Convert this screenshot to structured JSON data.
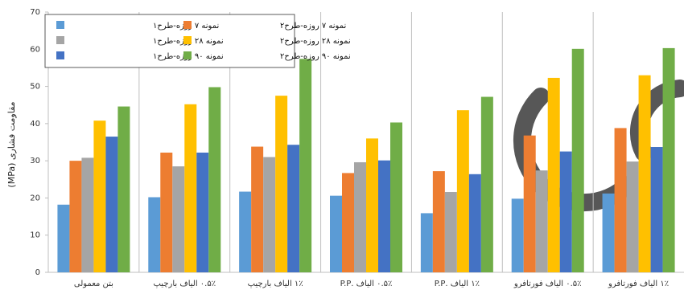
{
  "chart_data": {
    "type": "bar",
    "ylabel": "مقاومت فشاری (MPa)",
    "xlabel": "",
    "ylim": [
      0,
      70
    ],
    "yticks": [
      0,
      10,
      20,
      30,
      40,
      50,
      60,
      70
    ],
    "grid": "vertical separators between categories",
    "legend_position": "top-left",
    "categories": [
      "بتن معمولی",
      "۰.۵٪ الیاف بارچیپ",
      "۱٪ الیاف بارچیپ",
      "۰.۵٪ الیاف .P.P",
      "۱٪ الیاف .P.P",
      "۰.۵٪ الیاف فورتافرو",
      "۱٪ الیاف فورتافرو"
    ],
    "series": [
      {
        "name": "نمونه ۷ روزه-طرح۱",
        "color": "#5b9bd5",
        "values": [
          18.2,
          20.2,
          21.7,
          20.6,
          15.9,
          19.8,
          21.2
        ]
      },
      {
        "name": "نمونه ۷ روزه-طرح۲",
        "color": "#ed7d31",
        "values": [
          30.0,
          32.2,
          33.8,
          26.7,
          27.2,
          36.8,
          38.8
        ]
      },
      {
        "name": "نمونه ۲۸ روزه-طرح۱",
        "color": "#a5a5a5",
        "values": [
          30.8,
          28.5,
          31.0,
          29.6,
          21.6,
          27.4,
          29.8
        ]
      },
      {
        "name": "نمونه ۲۸ روزه-طرح۲",
        "color": "#ffc000",
        "values": [
          40.8,
          45.2,
          47.5,
          36.0,
          43.6,
          52.3,
          53.0
        ]
      },
      {
        "name": "نمونه ۹۰ روزه-طرح۱",
        "color": "#4472c4",
        "values": [
          36.5,
          32.2,
          34.3,
          30.1,
          26.4,
          32.5,
          33.7
        ]
      },
      {
        "name": "نمونه ۹۰ روزه-طرح۲",
        "color": "#70ad47",
        "values": [
          44.6,
          49.8,
          57.4,
          40.3,
          47.2,
          60.1,
          60.3
        ]
      }
    ],
    "legend": [
      [
        "نمونه ۷ روزه-طرح۱",
        "نمونه ۷ روزه-طرح۲"
      ],
      [
        "نمونه ۲۸ روزه-طرح۱",
        "نمونه ۲۸ روزه-طرح۲"
      ],
      [
        "نمونه ۹۰ روزه-طرح۱",
        "نمونه ۹۰ روزه-طرح۲"
      ]
    ]
  },
  "colors": {
    "axis": "#bfbfbf",
    "separator": "#bfbfbf",
    "watermark": "#3a3a3a"
  }
}
